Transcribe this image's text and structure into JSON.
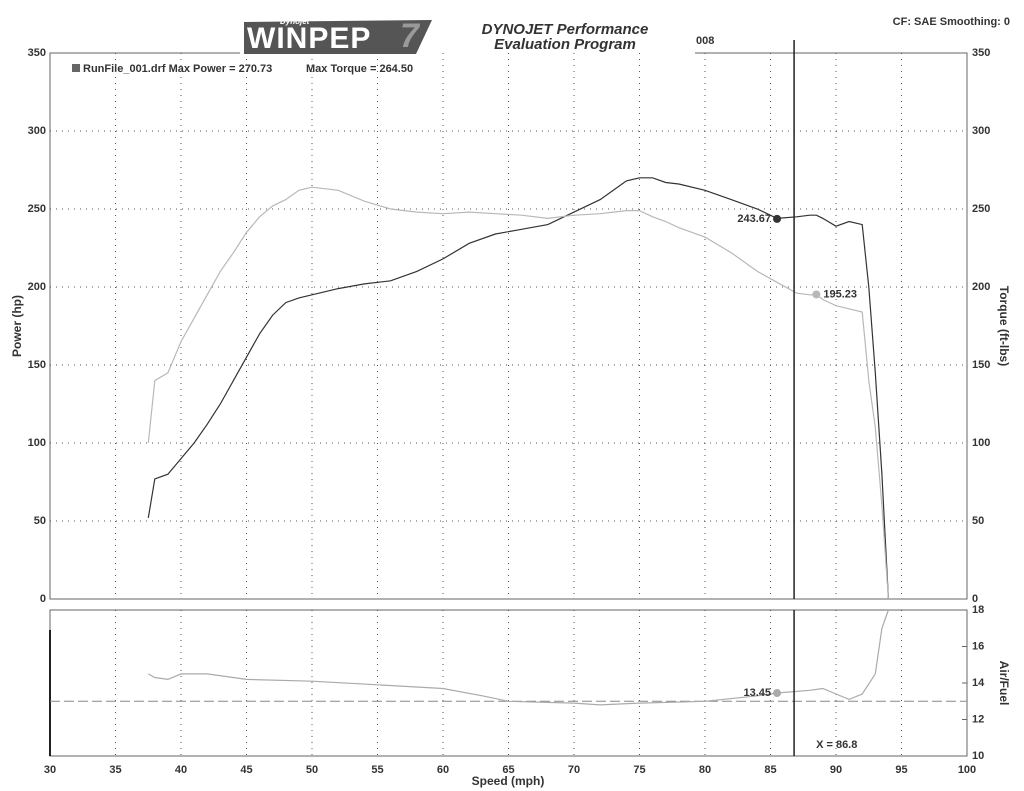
{
  "header": {
    "logo_small": "Dynojet",
    "logo": "WINPEP",
    "logo_version": "7",
    "program_line1": "DYNOJET Performance",
    "program_line2": "Evaluation Program",
    "date_fragment": "008",
    "settings": "CF: SAE  Smoothing: 0"
  },
  "chart_data": [
    {
      "type": "line",
      "legend_power": "RunFile_001.drf Max Power = 270.73",
      "legend_torque": "Max Torque = 264.50",
      "ylabel": "Power (hp)",
      "y2label": "Torque (ft-lbs)",
      "xlim": [
        30,
        100
      ],
      "ylim": [
        0,
        350
      ],
      "yticks": [
        0,
        50,
        100,
        150,
        200,
        250,
        300,
        350
      ],
      "y2lim": [
        0,
        350
      ],
      "y2ticks": [
        0,
        50,
        100,
        150,
        200,
        250,
        300,
        350
      ],
      "grid": true,
      "x": [
        37.5,
        38,
        39,
        40,
        41,
        42,
        43,
        44,
        45,
        46,
        47,
        48,
        49,
        50,
        52,
        54,
        56,
        58,
        60,
        62,
        64,
        66,
        68,
        70,
        72,
        73,
        74,
        75,
        76,
        77,
        78,
        80,
        82,
        84,
        85.5,
        87,
        88,
        88.5,
        89,
        90,
        91,
        92,
        92.5,
        93,
        93.5,
        94
      ],
      "series": [
        {
          "name": "Power",
          "color": "#333333",
          "values": [
            52,
            77,
            80,
            90,
            100,
            112,
            125,
            140,
            155,
            170,
            182,
            190,
            193,
            195,
            199,
            202,
            204,
            210,
            218,
            228,
            234,
            237,
            240,
            248,
            256,
            262,
            268,
            270,
            270,
            267,
            266,
            262,
            256,
            250,
            244,
            245,
            246,
            246,
            244,
            239,
            242,
            240,
            200,
            145,
            80,
            0
          ],
          "marker": {
            "x": 85.5,
            "value": 243.67
          }
        },
        {
          "name": "Torque",
          "color": "#b8b8b8",
          "axis": "y2",
          "values": [
            100,
            140,
            145,
            165,
            180,
            195,
            210,
            222,
            235,
            245,
            252,
            256,
            262,
            264,
            262,
            255,
            250,
            248,
            247,
            248,
            247,
            246,
            244,
            246,
            247,
            248,
            249,
            249,
            245,
            242,
            238,
            232,
            222,
            210,
            203,
            196,
            195,
            195,
            192,
            188,
            186,
            184,
            140,
            110,
            60,
            0
          ],
          "marker": {
            "x": 88.5,
            "value": 195.23
          }
        }
      ],
      "cursor_x": 86.8
    },
    {
      "type": "line",
      "xlabel": "Speed (mph)",
      "y2label": "Air/Fuel",
      "xlim": [
        30,
        100
      ],
      "xticks": [
        30,
        35,
        40,
        45,
        50,
        55,
        60,
        65,
        70,
        75,
        80,
        85,
        90,
        95,
        100
      ],
      "y2lim": [
        10,
        18
      ],
      "y2ticks": [
        10,
        12,
        14,
        16,
        18
      ],
      "reference": 13,
      "x": [
        37.5,
        38,
        39,
        40,
        42,
        45,
        50,
        55,
        60,
        63,
        65,
        70,
        72,
        75,
        80,
        84,
        85.5,
        88,
        89,
        90,
        91,
        92,
        93,
        93.5,
        94
      ],
      "series": [
        {
          "name": "Air/Fuel",
          "color": "#aaaaaa",
          "axis": "y2",
          "values": [
            14.5,
            14.3,
            14.2,
            14.5,
            14.5,
            14.2,
            14.1,
            13.9,
            13.7,
            13.3,
            13.0,
            12.9,
            12.8,
            12.9,
            13.0,
            13.3,
            13.45,
            13.6,
            13.7,
            13.4,
            13.1,
            13.4,
            14.5,
            17,
            18
          ],
          "marker": {
            "x": 85.5,
            "value": 13.45
          }
        }
      ],
      "cursor_x": 86.8,
      "cursor_label": "X = 86.8"
    }
  ]
}
